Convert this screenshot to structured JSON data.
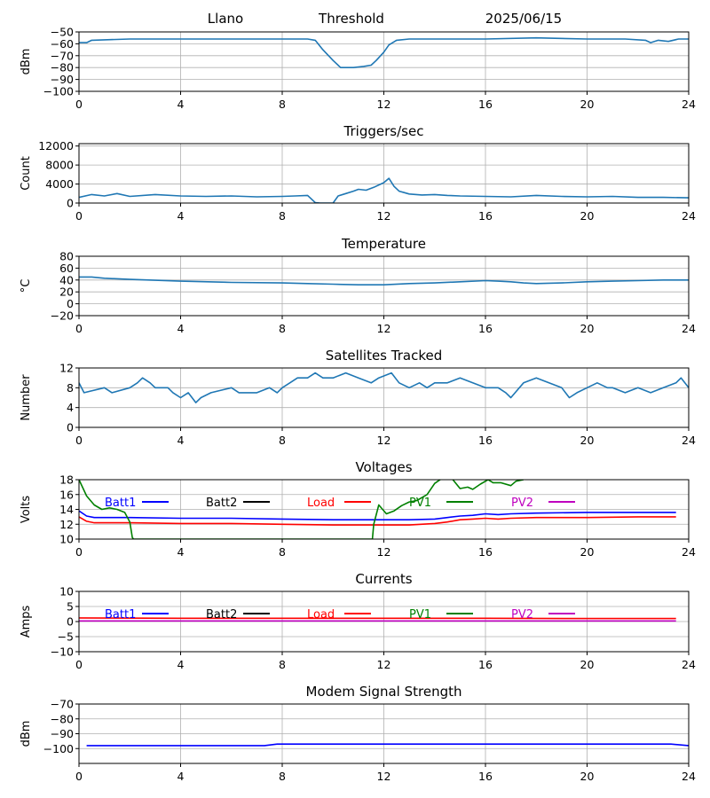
{
  "header": {
    "site": "Llano",
    "label": "Threshold",
    "date": "2025/06/15"
  },
  "x_ticks": [
    "0",
    "4",
    "8",
    "12",
    "16",
    "20",
    "24"
  ],
  "legend": [
    {
      "label": "Batt1",
      "color": "#0000ff"
    },
    {
      "label": "Batt2",
      "color": "#000000"
    },
    {
      "label": "Load",
      "color": "#ff0000"
    },
    {
      "label": "PV1",
      "color": "#008000"
    },
    {
      "label": "PV2",
      "color": "#bf00bf"
    }
  ],
  "chart_data": [
    {
      "type": "line",
      "title": "",
      "ylabel": "dBm",
      "xlim": [
        0,
        24
      ],
      "ylim": [
        -100,
        -50
      ],
      "yticks": [
        -100,
        -90,
        -80,
        -70,
        -60,
        -50
      ],
      "grid": true,
      "series": [
        {
          "color": "#1f77b4",
          "x": [
            0,
            0.3,
            0.5,
            2,
            4,
            6,
            8,
            9,
            9.3,
            9.6,
            10,
            10.3,
            10.8,
            11.2,
            11.5,
            11.7,
            12,
            12.2,
            12.5,
            13,
            14,
            16,
            18,
            20,
            21.5,
            22.3,
            22.5,
            22.8,
            23.2,
            23.6,
            24
          ],
          "y": [
            -59,
            -59,
            -57,
            -56,
            -56,
            -56,
            -56,
            -56,
            -57,
            -65,
            -74,
            -80,
            -80,
            -79,
            -78,
            -74,
            -67,
            -61,
            -57,
            -56,
            -56,
            -56,
            -55,
            -56,
            -56,
            -57,
            -59,
            -57,
            -58,
            -56,
            -56
          ]
        }
      ]
    },
    {
      "type": "line",
      "title": "Triggers/sec",
      "ylabel": "Count",
      "xlim": [
        0,
        24
      ],
      "ylim": [
        0,
        12500
      ],
      "yticks": [
        0,
        4000,
        8000,
        12000
      ],
      "grid": true,
      "series": [
        {
          "color": "#1f77b4",
          "x": [
            0,
            0.5,
            1,
            1.5,
            2,
            3,
            4,
            5,
            6,
            7,
            8,
            8.5,
            9,
            9.3,
            9.5,
            10,
            10.2,
            10.5,
            10.8,
            11,
            11.3,
            11.6,
            11.8,
            12,
            12.2,
            12.4,
            12.6,
            12.8,
            13,
            13.5,
            14,
            14.5,
            15,
            16,
            17,
            18,
            19,
            20,
            21,
            22,
            23,
            24
          ],
          "y": [
            1200,
            1800,
            1500,
            2000,
            1400,
            1800,
            1500,
            1400,
            1500,
            1300,
            1400,
            1500,
            1600,
            100,
            0,
            0,
            1500,
            2000,
            2500,
            2900,
            2700,
            3300,
            3800,
            4300,
            5200,
            3500,
            2500,
            2200,
            1900,
            1700,
            1800,
            1600,
            1500,
            1400,
            1300,
            1600,
            1400,
            1300,
            1400,
            1200,
            1200,
            1100
          ]
        }
      ]
    },
    {
      "type": "line",
      "title": "Temperature",
      "ylabel": "°C",
      "xlim": [
        0,
        24
      ],
      "ylim": [
        -20,
        80
      ],
      "yticks": [
        -20,
        0,
        20,
        40,
        60,
        80
      ],
      "grid": true,
      "series": [
        {
          "color": "#1f77b4",
          "x": [
            0,
            0.5,
            1,
            2,
            4,
            6,
            8,
            9,
            10,
            11,
            12,
            13,
            14,
            15,
            16,
            16.5,
            17,
            17.5,
            18,
            19,
            20,
            21,
            22,
            23,
            24
          ],
          "y": [
            45,
            45,
            43,
            41,
            38,
            36,
            35,
            34,
            33,
            32,
            32,
            34,
            35,
            37,
            39,
            38,
            37,
            35,
            34,
            35,
            37,
            38,
            39,
            40,
            40
          ]
        }
      ]
    },
    {
      "type": "line",
      "title": "Satellites Tracked",
      "ylabel": "Number",
      "xlim": [
        0,
        24
      ],
      "ylim": [
        0,
        12
      ],
      "yticks": [
        0,
        4,
        8,
        12
      ],
      "grid": true,
      "series": [
        {
          "color": "#1f77b4",
          "x": [
            0,
            0.2,
            1,
            1.3,
            2,
            2.3,
            2.5,
            2.8,
            3,
            3.5,
            3.7,
            4,
            4.3,
            4.6,
            4.8,
            5.2,
            6,
            6.3,
            7,
            7.5,
            7.8,
            8,
            8.3,
            8.6,
            9,
            9.3,
            9.6,
            10,
            10.5,
            11,
            11.5,
            11.8,
            12.3,
            12.6,
            13,
            13.4,
            13.7,
            14,
            14.5,
            15,
            15.5,
            16,
            16.5,
            16.8,
            17,
            17.5,
            18,
            18.5,
            19,
            19.3,
            19.6,
            20,
            20.4,
            20.8,
            21,
            21.5,
            22,
            22.5,
            23,
            23.5,
            23.7,
            24
          ],
          "y": [
            9,
            7,
            8,
            7,
            8,
            9,
            10,
            9,
            8,
            8,
            7,
            6,
            7,
            5,
            6,
            7,
            8,
            7,
            7,
            8,
            7,
            8,
            9,
            10,
            10,
            11,
            10,
            10,
            11,
            10,
            9,
            10,
            11,
            9,
            8,
            9,
            8,
            9,
            9,
            10,
            9,
            8,
            8,
            7,
            6,
            9,
            10,
            9,
            8,
            6,
            7,
            8,
            9,
            8,
            8,
            7,
            8,
            7,
            8,
            9,
            10,
            8
          ]
        }
      ]
    },
    {
      "type": "line",
      "title": "Voltages",
      "ylabel": "Volts",
      "xlim": [
        0,
        24
      ],
      "ylim": [
        10,
        18
      ],
      "yticks": [
        10,
        12,
        14,
        16,
        18
      ],
      "grid": true,
      "series": [
        {
          "name": "Batt1",
          "color": "#0000ff",
          "x": [
            0,
            0.3,
            0.6,
            2,
            4,
            6,
            8,
            10,
            12,
            13,
            14,
            14.5,
            15,
            15.5,
            16,
            16.5,
            17,
            18,
            20,
            22,
            23.5
          ],
          "y": [
            13.8,
            13.1,
            12.9,
            12.9,
            12.8,
            12.8,
            12.7,
            12.6,
            12.6,
            12.6,
            12.7,
            12.9,
            13.1,
            13.2,
            13.4,
            13.3,
            13.4,
            13.5,
            13.6,
            13.6,
            13.6
          ]
        },
        {
          "name": "Load",
          "color": "#ff0000",
          "x": [
            0,
            0.3,
            0.6,
            2,
            4,
            6,
            8,
            10,
            12,
            13,
            14,
            14.5,
            15,
            15.5,
            16,
            16.5,
            17,
            18,
            20,
            22,
            23.5
          ],
          "y": [
            13.0,
            12.4,
            12.2,
            12.2,
            12.1,
            12.1,
            12.0,
            11.9,
            11.9,
            11.9,
            12.1,
            12.3,
            12.6,
            12.7,
            12.8,
            12.7,
            12.8,
            12.9,
            12.9,
            13.0,
            13.0
          ]
        },
        {
          "name": "PV1",
          "color": "#008000",
          "x": [
            0,
            0.3,
            0.6,
            0.9,
            1.2,
            1.5,
            1.8,
            2.0,
            2.1,
            2.15,
            11.55,
            11.6,
            11.8,
            12.1,
            12.4,
            12.7,
            13.0,
            13.3,
            13.7,
            14.0,
            14.3,
            14.6,
            15.0,
            15.3,
            15.5,
            15.8,
            16.1,
            16.3,
            16.6,
            17.0,
            17.2,
            17.5
          ],
          "y": [
            18.0,
            15.8,
            14.6,
            14.0,
            14.2,
            14.0,
            13.6,
            12.3,
            10.2,
            10.0,
            10.0,
            12.0,
            14.6,
            13.4,
            13.8,
            14.5,
            15.0,
            15.2,
            16.0,
            17.5,
            18.2,
            18.5,
            16.8,
            17.0,
            16.7,
            17.4,
            18.0,
            17.6,
            17.6,
            17.2,
            17.8,
            18.0
          ]
        }
      ]
    },
    {
      "type": "line",
      "title": "Currents",
      "ylabel": "Amps",
      "xlim": [
        0,
        24
      ],
      "ylim": [
        -10,
        10
      ],
      "yticks": [
        -10,
        -5,
        0,
        5,
        10
      ],
      "grid": true,
      "series": [
        {
          "name": "Load",
          "color": "#ff0000",
          "x": [
            0,
            4,
            8,
            12,
            16,
            20,
            23.5
          ],
          "y": [
            1.2,
            1.1,
            1.1,
            1.1,
            1.1,
            1.0,
            1.0
          ]
        },
        {
          "name": "PV2",
          "color": "#bf00bf",
          "x": [
            0,
            4,
            8,
            12,
            16,
            20,
            23.5
          ],
          "y": [
            0.2,
            0.2,
            0.2,
            0.2,
            0.2,
            0.2,
            0.2
          ]
        }
      ]
    },
    {
      "type": "line",
      "title": "Modem Signal Strength",
      "ylabel": "dBm",
      "xlim": [
        0,
        24
      ],
      "ylim": [
        -110,
        -70
      ],
      "yticks": [
        -100,
        -90,
        -80,
        -70
      ],
      "grid": true,
      "series": [
        {
          "color": "#0000ff",
          "x": [
            0.3,
            7.3,
            7.8,
            8,
            23.3,
            24
          ],
          "y": [
            -98,
            -98,
            -97,
            -97,
            -97,
            -98
          ]
        }
      ]
    }
  ]
}
